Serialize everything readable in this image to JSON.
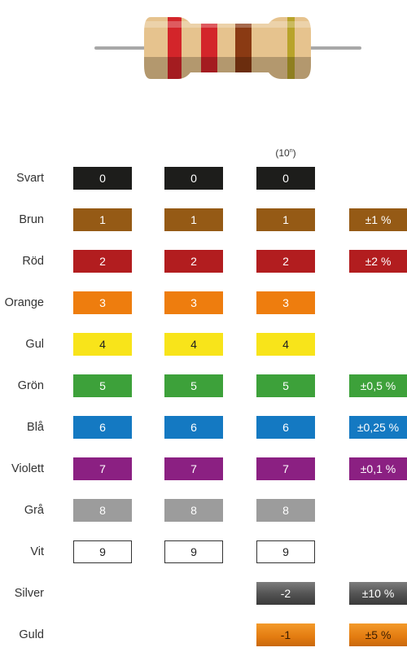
{
  "colors": {
    "black": "#1d1d1b",
    "brown": "#955a15",
    "red": "#b21d1f",
    "orange": "#ee7d0e",
    "yellow": "#f8e41a",
    "green": "#3da13a",
    "blue": "#1479c2",
    "violet": "#8b2082",
    "gray": "#9c9c9c",
    "white": "#ffffff"
  },
  "header": {
    "multiplier_base": "(10",
    "multiplier_exp": "n",
    "multiplier_close": ")"
  },
  "rows": [
    {
      "label": "Svart",
      "swatch": "black",
      "d1": "0",
      "d2": "0",
      "mult": "0",
      "tol": ""
    },
    {
      "label": "Brun",
      "swatch": "brown",
      "d1": "1",
      "d2": "1",
      "mult": "1",
      "tol": "±1 %"
    },
    {
      "label": "Röd",
      "swatch": "red",
      "d1": "2",
      "d2": "2",
      "mult": "2",
      "tol": "±2 %"
    },
    {
      "label": "Orange",
      "swatch": "orange",
      "d1": "3",
      "d2": "3",
      "mult": "3",
      "tol": ""
    },
    {
      "label": "Gul",
      "swatch": "yellow",
      "d1": "4",
      "d2": "4",
      "mult": "4",
      "tol": ""
    },
    {
      "label": "Grön",
      "swatch": "green",
      "d1": "5",
      "d2": "5",
      "mult": "5",
      "tol": "±0,5 %"
    },
    {
      "label": "Blå",
      "swatch": "blue",
      "d1": "6",
      "d2": "6",
      "mult": "6",
      "tol": "±0,25 %"
    },
    {
      "label": "Violett",
      "swatch": "violet",
      "d1": "7",
      "d2": "7",
      "mult": "7",
      "tol": "±0,1 %"
    },
    {
      "label": "Grå",
      "swatch": "gray",
      "d1": "8",
      "d2": "8",
      "mult": "8",
      "tol": ""
    },
    {
      "label": "Vit",
      "swatch": "white",
      "d1": "9",
      "d2": "9",
      "mult": "9",
      "tol": ""
    },
    {
      "label": "Silver",
      "swatch": "silver",
      "d1": "",
      "d2": "",
      "mult": "-2",
      "tol": "±10 %"
    },
    {
      "label": "Guld",
      "swatch": "gold",
      "d1": "",
      "d2": "",
      "mult": "-1",
      "tol": "±5 %"
    }
  ]
}
